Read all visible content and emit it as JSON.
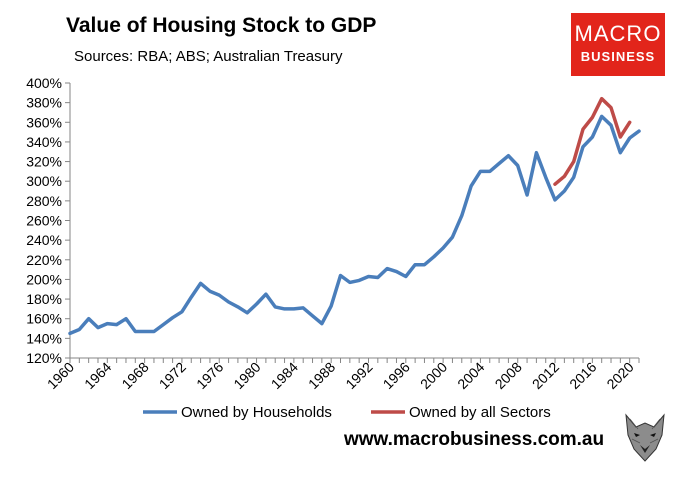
{
  "chart_data": {
    "type": "line",
    "title": "Value of Housing Stock to GDP",
    "subtitle": "Sources: RBA; ABS; Australian Treasury",
    "xlabel": "",
    "ylabel": "",
    "ylim": [
      120,
      400
    ],
    "xlim": [
      1960,
      2021
    ],
    "yticks": [
      120,
      140,
      160,
      180,
      200,
      220,
      240,
      260,
      280,
      300,
      320,
      340,
      360,
      380,
      400
    ],
    "ytick_labels": [
      "120%",
      "140%",
      "160%",
      "180%",
      "200%",
      "220%",
      "240%",
      "260%",
      "280%",
      "300%",
      "320%",
      "340%",
      "360%",
      "380%",
      "400%"
    ],
    "xticks": [
      1960,
      1964,
      1968,
      1972,
      1976,
      1980,
      1984,
      1988,
      1992,
      1996,
      2000,
      2004,
      2008,
      2012,
      2016,
      2020
    ],
    "xtick_labels": [
      "1960",
      "1964",
      "1968",
      "1972",
      "1976",
      "1980",
      "1984",
      "1988",
      "1992",
      "1996",
      "2000",
      "2004",
      "2008",
      "2012",
      "2016",
      "2020"
    ],
    "grid": false,
    "legend_position": "bottom",
    "series": [
      {
        "name": "Owned by Households",
        "color": "#4a7ebb",
        "x": [
          1960,
          1961,
          1962,
          1963,
          1964,
          1965,
          1966,
          1967,
          1968,
          1969,
          1970,
          1971,
          1972,
          1973,
          1974,
          1975,
          1976,
          1977,
          1978,
          1979,
          1980,
          1981,
          1982,
          1983,
          1984,
          1985,
          1986,
          1987,
          1988,
          1989,
          1990,
          1991,
          1992,
          1993,
          1994,
          1995,
          1996,
          1997,
          1998,
          1999,
          2000,
          2001,
          2002,
          2003,
          2004,
          2005,
          2006,
          2007,
          2008,
          2009,
          2010,
          2011,
          2012,
          2013,
          2014,
          2015,
          2016,
          2017,
          2018,
          2019,
          2020,
          2021
        ],
        "values": [
          145,
          149,
          160,
          151,
          155,
          154,
          160,
          147,
          147,
          147,
          154,
          161,
          167,
          182,
          196,
          188,
          184,
          177,
          172,
          166,
          175,
          185,
          172,
          170,
          170,
          171,
          163,
          155,
          173,
          204,
          197,
          199,
          203,
          202,
          211,
          208,
          203,
          215,
          215,
          223,
          232,
          243,
          265,
          295,
          310,
          310,
          318,
          326,
          316,
          286,
          329,
          304,
          281,
          290,
          304,
          335,
          345,
          366,
          357,
          329,
          344,
          351
        ]
      },
      {
        "name": "Owned by all Sectors",
        "color": "#be4b48",
        "x": [
          2012,
          2013,
          2014,
          2015,
          2016,
          2017,
          2018,
          2019,
          2020
        ],
        "values": [
          297,
          305,
          320,
          353,
          365,
          384,
          375,
          345,
          360
        ]
      }
    ]
  },
  "branding": {
    "logo_line1": "MACRO",
    "logo_line2": "BUSINESS",
    "website": "www.macrobusiness.com.au"
  }
}
